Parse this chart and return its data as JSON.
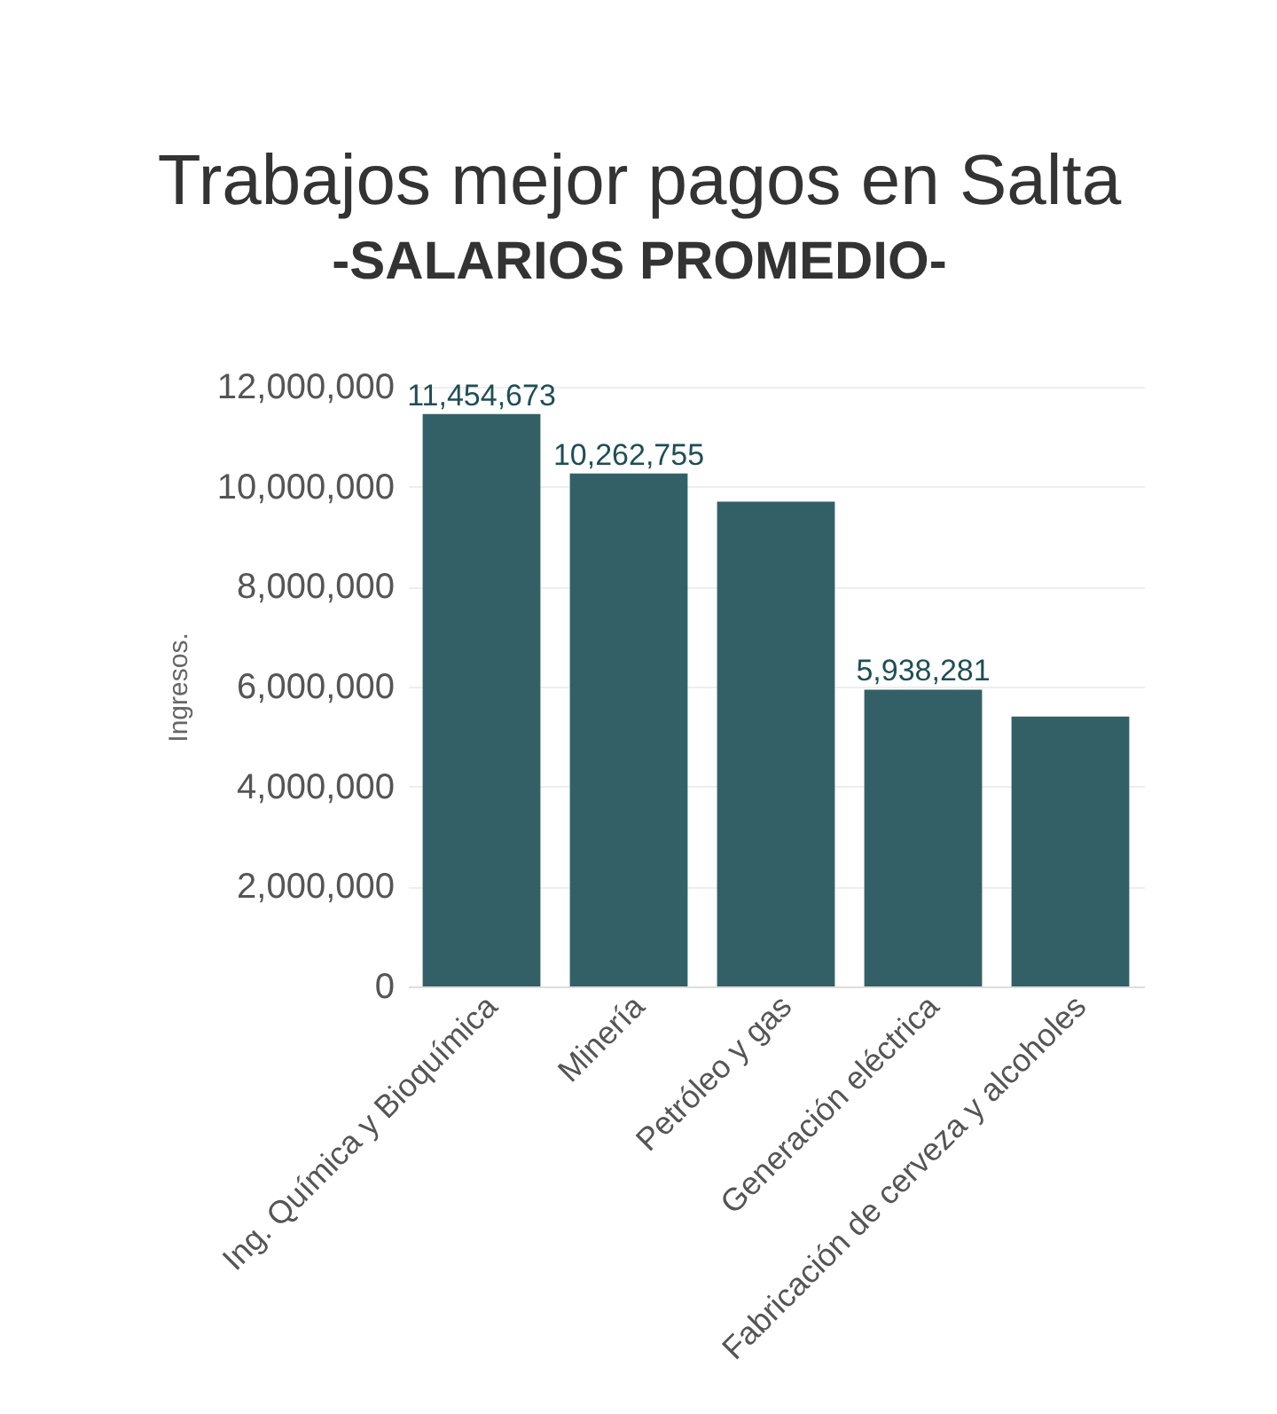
{
  "chart_data": {
    "type": "bar",
    "title": "Trabajos mejor pagos en Salta",
    "subtitle": "-SALARIOS PROMEDIO-",
    "ylabel": "Ingresos.",
    "categories": [
      "Ing. Química y Bioquímica",
      "Minería",
      "Petróleo y gas",
      "Generación eléctrica",
      "Fabricación de cerveza y alcoholes"
    ],
    "values": [
      11454673,
      10262755,
      9700000,
      5938281,
      5400000
    ],
    "value_labels": [
      "11,454,673",
      "10,262,755",
      null,
      "5,938,281",
      null
    ],
    "color": "#336066",
    "ylim": [
      0,
      12000000
    ],
    "yticks": [
      0,
      {
        "value": 2000000,
        "label": "2,000,000"
      },
      {
        "value": 4000000,
        "label": "4,000,000"
      },
      {
        "value": 6000000,
        "label": "6,000,000"
      },
      {
        "value": 8000000,
        "label": "8,000,000"
      },
      {
        "value": 10000000,
        "label": "10,000,000"
      },
      {
        "value": 12000000,
        "label": "12,000,000"
      }
    ],
    "grid": "y"
  }
}
